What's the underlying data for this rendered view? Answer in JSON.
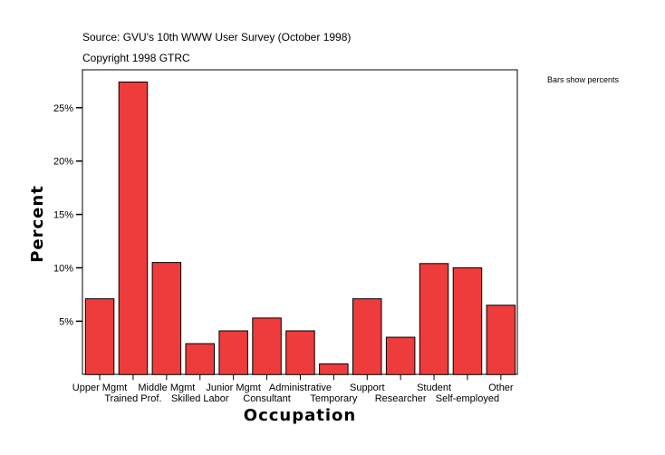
{
  "source": "Source: GVU's 10th WWW User Survey (October 1998)",
  "copyright": "Copyright 1998 GTRC",
  "note": "Bars show percents",
  "chart_data": {
    "type": "bar",
    "title": "",
    "xlabel": "Occupation",
    "ylabel": "Percent",
    "categories": [
      "Upper Mgmt",
      "Trained Prof.",
      "Middle Mgmt",
      "Skilled Labor",
      "Junior Mgmt",
      "Consultant",
      "Administrative",
      "Temporary",
      "Support",
      "Researcher",
      "Student",
      "Self-employed",
      "Other"
    ],
    "values": [
      7.1,
      27.4,
      10.5,
      2.9,
      4.1,
      5.3,
      4.1,
      1.0,
      7.1,
      3.5,
      10.4,
      10.0,
      6.5
    ],
    "yticks": [
      5,
      10,
      15,
      20,
      25
    ],
    "ytick_labels": [
      "5%",
      "10%",
      "15%",
      "20%",
      "25%"
    ],
    "ylim": [
      0,
      28.5
    ],
    "grid": false,
    "bar_color": "#ee3b3b"
  }
}
